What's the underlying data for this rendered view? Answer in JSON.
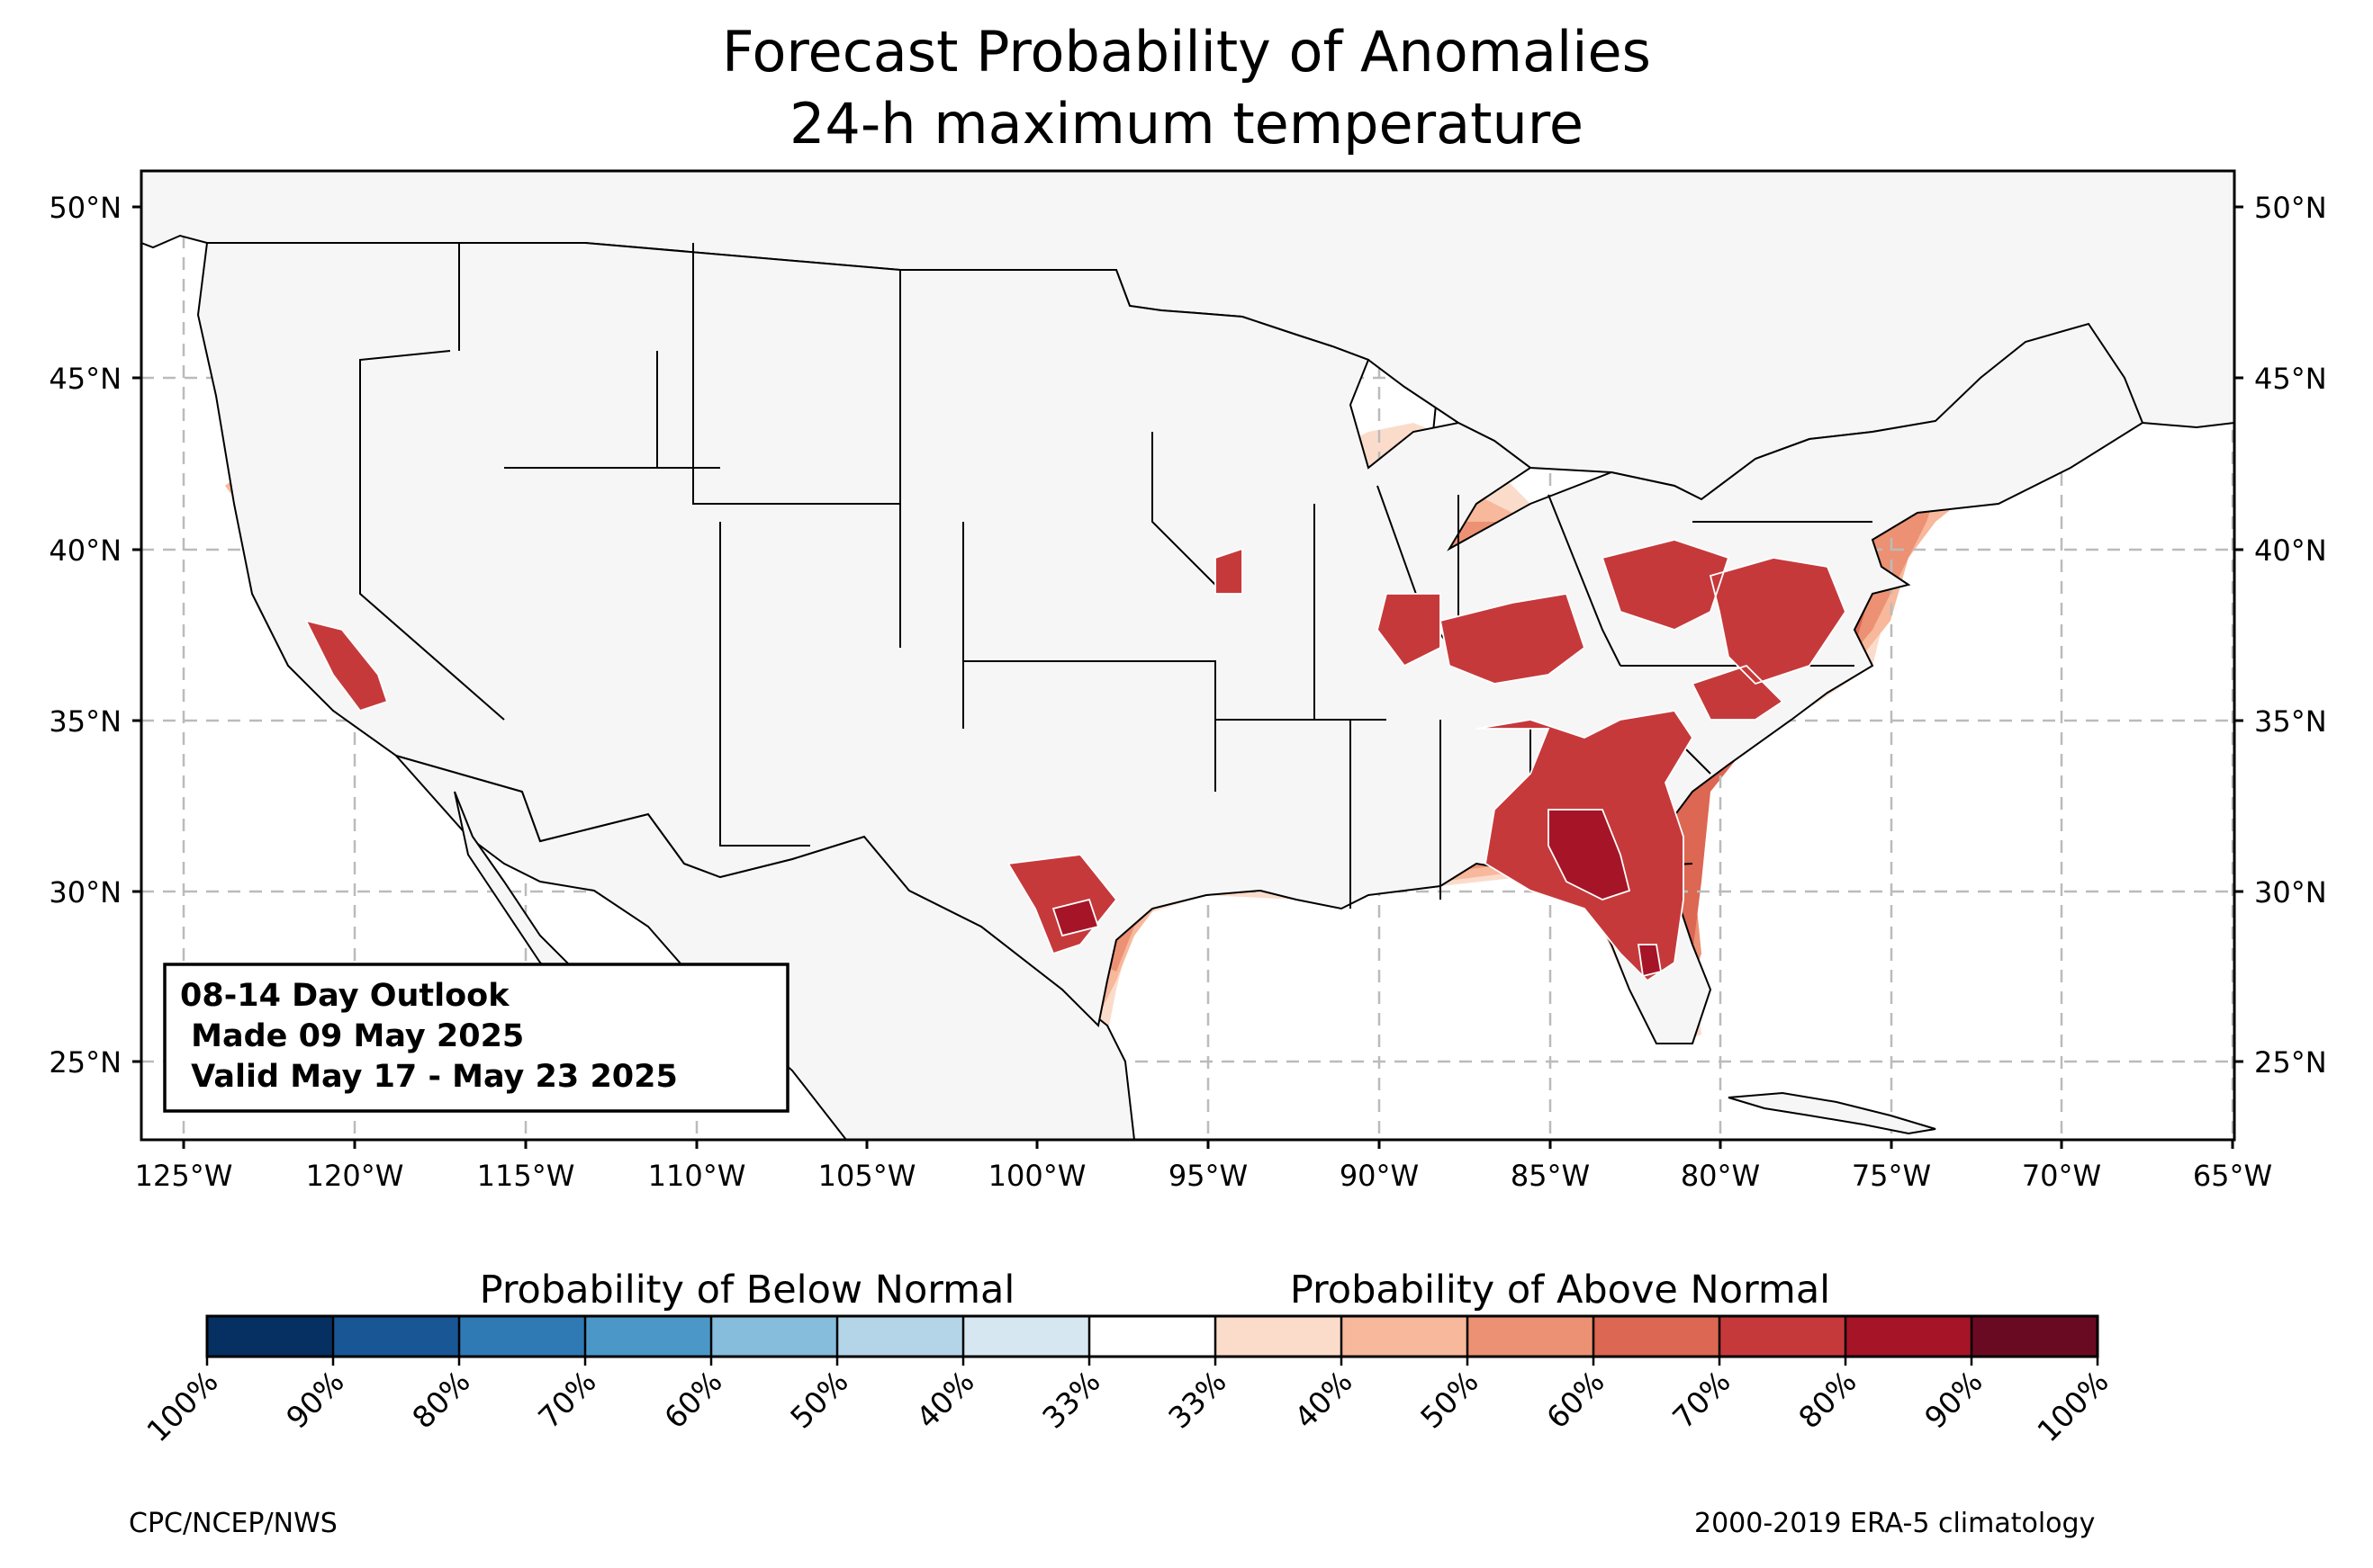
{
  "title": {
    "line1": "Forecast Probability of Anomalies",
    "line2": "24-h maximum temperature"
  },
  "map": {
    "lat_ticks": [
      "50°N",
      "45°N",
      "40°N",
      "35°N",
      "30°N",
      "25°N"
    ],
    "lon_ticks": [
      "125°W",
      "120°W",
      "115°W",
      "110°W",
      "105°W",
      "100°W",
      "95°W",
      "90°W",
      "85°W",
      "80°W",
      "75°W",
      "70°W",
      "65°W"
    ],
    "land_color": "#f5f6f5",
    "colors": {
      "prob_33_40": "#fbdccb",
      "prob_40_50": "#f7b89b",
      "prob_50_60": "#ec9173",
      "prob_60_70": "#dc6752",
      "prob_70_80": "#c6393b",
      "prob_80_90": "#a51527",
      "below_33_40": "#d5e6f2",
      "below_40_50": "#b4d4e8"
    }
  },
  "info_box": {
    "line1": "08-14 Day Outlook",
    "line2": " Made 09 May 2025",
    "line3": " Valid May 17 - May 23 2025"
  },
  "colorbar": {
    "below_label": "Probability of Below Normal",
    "above_label": "Probability of Above Normal",
    "ticks": [
      "100%",
      "90%",
      "80%",
      "70%",
      "60%",
      "50%",
      "40%",
      "33%",
      "33%",
      "40%",
      "50%",
      "60%",
      "70%",
      "80%",
      "90%",
      "100%"
    ],
    "colors": [
      "#053061",
      "#195696",
      "#2f79b5",
      "#4b98c8",
      "#86bcdc",
      "#b4d4e8",
      "#d7e7f2",
      "#ffffff",
      "#fbdccb",
      "#f7b89b",
      "#ec9173",
      "#dc6752",
      "#c6393b",
      "#a51527",
      "#6a0a22"
    ]
  },
  "footer": {
    "left": "CPC/NCEP/NWS",
    "right": "2000-2019 ERA-5 climatology"
  }
}
